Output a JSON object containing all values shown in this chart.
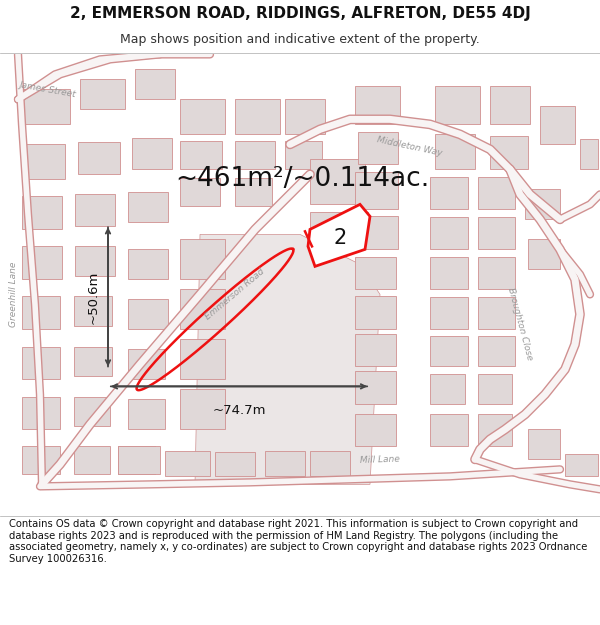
{
  "title_line1": "2, EMMERSON ROAD, RIDDINGS, ALFRETON, DE55 4DJ",
  "title_line2": "Map shows position and indicative extent of the property.",
  "area_text": "~461m²/~0.114ac.",
  "label_number": "2",
  "dim_width": "~74.7m",
  "dim_height": "~50.6m",
  "footer_text": "Contains OS data © Crown copyright and database right 2021. This information is subject to Crown copyright and database rights 2023 and is reproduced with the permission of HM Land Registry. The polygons (including the associated geometry, namely x, y co-ordinates) are subject to Crown copyright and database rights 2023 Ordnance Survey 100026316.",
  "map_bg": "#f2eded",
  "building_fill": "#e0d8d8",
  "building_edge": "#d09090",
  "road_outline": "#d09090",
  "road_fill": "#f8f4f4",
  "highlight_red": "#ee1111",
  "text_dark": "#111111",
  "text_gray": "#888888",
  "dim_color": "#444444",
  "street_label_color": "#999999",
  "title_fontsize": 11,
  "subtitle_fontsize": 9,
  "area_fontsize": 19,
  "label_fontsize": 15,
  "dim_fontsize": 9.5,
  "footer_fontsize": 7.2
}
